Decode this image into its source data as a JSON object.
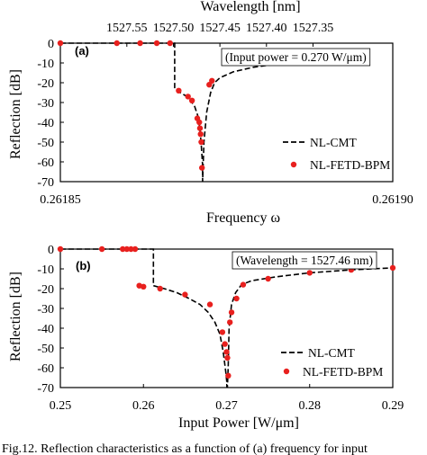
{
  "chart_data": [
    {
      "type": "line",
      "panel_label": "(a)",
      "xlabel": "Frequency ω",
      "top_xlabel": "Wavelength [nm]",
      "ylabel": "Reflection [dB]",
      "annotation": "(Input power = 0.270 W/μm)",
      "xlim": [
        0.26185,
        0.2619
      ],
      "ylim": [
        -70,
        0
      ],
      "x_ticks": [
        "0.26185",
        "0.26190"
      ],
      "y_ticks": [
        "0",
        "-10",
        "-20",
        "-30",
        "-40",
        "-50",
        "-60",
        "-70"
      ],
      "top_ticks": [
        {
          "label": "1527.55",
          "at": 0.26186
        },
        {
          "label": "1527.50",
          "at": 0.261867
        },
        {
          "label": "1527.45",
          "at": 0.261874
        },
        {
          "label": "1527.40",
          "at": 0.261881
        },
        {
          "label": "1527.35",
          "at": 0.261888
        }
      ],
      "legend_position": "bottom-right",
      "series": [
        {
          "name": "NL-CMT",
          "style": "dashed-line",
          "color": "#000000",
          "x": [
            0.26185,
            0.2618608,
            0.2618672,
            0.2618672,
            0.2618678,
            0.2618688,
            0.2618696,
            0.2618702,
            0.2618707,
            0.261871,
            0.2618712,
            0.2618714,
            0.2618714,
            0.2618716,
            0.261872,
            0.2618726,
            0.2618732,
            0.261874,
            0.261876,
            0.261879,
            0.261882,
            0.261885,
            0.261887,
            0.261889,
            0.26189
          ],
          "y": [
            0,
            0,
            0,
            -23,
            -24.5,
            -26.5,
            -29,
            -32,
            -37,
            -44,
            -52,
            -62,
            -70,
            -50,
            -35,
            -25,
            -20,
            -17.5,
            -14.5,
            -12.2,
            -10.8,
            -9.8,
            -9.4,
            -9.1,
            -9
          ]
        },
        {
          "name": "NL-FETD-BPM",
          "style": "markers",
          "color": "#e8201e",
          "x": [
            0.26185,
            0.2618585,
            0.261862,
            0.2618645,
            0.2618665,
            0.2618678,
            0.2618692,
            0.2618698,
            0.2618706,
            0.2618709,
            0.261871,
            0.2618711,
            0.2618712,
            0.2618713,
            0.2618724,
            0.2618728
          ],
          "y": [
            0,
            0,
            0,
            0,
            0,
            -24,
            -27,
            -29,
            -38,
            -40,
            -43,
            -46,
            -50,
            -63,
            -21,
            -19
          ]
        }
      ]
    },
    {
      "type": "line",
      "panel_label": "(b)",
      "xlabel": "Input Power [W/μm]",
      "ylabel": "Reflection [dB]",
      "annotation": "(Wavelength = 1527.46 nm)",
      "xlim": [
        0.25,
        0.29
      ],
      "ylim": [
        -70,
        0
      ],
      "x_ticks": [
        "0.25",
        "0.26",
        "0.27",
        "0.28",
        "0.29"
      ],
      "y_ticks": [
        "0",
        "-10",
        "-20",
        "-30",
        "-40",
        "-50",
        "-60",
        "-70"
      ],
      "legend_position": "bottom-right",
      "series": [
        {
          "name": "NL-CMT",
          "style": "dashed-line",
          "color": "#000000",
          "x": [
            0.25,
            0.2612,
            0.2612,
            0.2625,
            0.264,
            0.2655,
            0.2668,
            0.2678,
            0.2686,
            0.2692,
            0.2696,
            0.2699,
            0.2701,
            0.2702,
            0.2703,
            0.2706,
            0.2711,
            0.2718,
            0.273,
            0.276,
            0.28,
            0.285,
            0.29
          ],
          "y": [
            0,
            0,
            -18.5,
            -20,
            -22,
            -25,
            -28,
            -32,
            -37,
            -43,
            -52,
            -62,
            -70,
            -60,
            -40,
            -28,
            -22,
            -18,
            -16,
            -14,
            -12,
            -10.5,
            -9.5
          ]
        },
        {
          "name": "NL-FETD-BPM",
          "style": "markers",
          "color": "#e8201e",
          "x": [
            0.25,
            0.255,
            0.2575,
            0.258,
            0.2585,
            0.259,
            0.2595,
            0.26,
            0.262,
            0.265,
            0.268,
            0.2695,
            0.2698,
            0.27,
            0.2701,
            0.2702,
            0.2704,
            0.2706,
            0.2712,
            0.272,
            0.275,
            0.28,
            0.285,
            0.29
          ],
          "y": [
            0,
            0,
            0,
            0,
            0,
            0,
            -18.5,
            -19,
            -20,
            -23,
            -28,
            -42,
            -48,
            -52,
            -55,
            -64,
            -37,
            -32,
            -25,
            -18,
            -15,
            -12,
            -10.5,
            -9.5
          ]
        }
      ]
    }
  ],
  "caption": "Fig.12. Reflection characteristics as a function of (a) frequency for input"
}
